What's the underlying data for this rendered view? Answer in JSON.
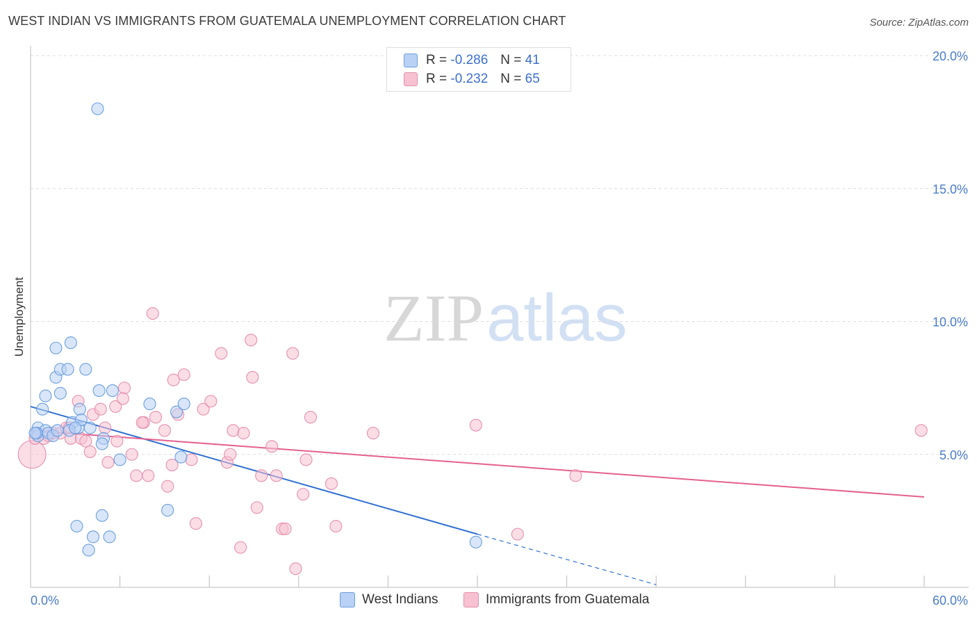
{
  "title": "WEST INDIAN VS IMMIGRANTS FROM GUATEMALA UNEMPLOYMENT CORRELATION CHART",
  "source": "Source: ZipAtlas.com",
  "watermark": {
    "zip": "ZIP",
    "atlas": "atlas"
  },
  "legend": {
    "r_label": "R =",
    "n_label": "N =",
    "series": [
      {
        "r": "-0.286",
        "n": "41",
        "fill": "#b9d1f4",
        "stroke": "#6a9ee0"
      },
      {
        "r": "-0.232",
        "n": "65",
        "fill": "#f7c1d2",
        "stroke": "#e58fad"
      }
    ]
  },
  "chart_data": {
    "type": "scatter",
    "title": "WEST INDIAN VS IMMIGRANTS FROM GUATEMALA UNEMPLOYMENT CORRELATION CHART",
    "xlabel": "",
    "ylabel": "Unemployment",
    "xlim": [
      0,
      60
    ],
    "ylim": [
      0,
      20
    ],
    "x_tick_labels": [
      "0.0%",
      "60.0%"
    ],
    "y_ticks": [
      5,
      10,
      15,
      20
    ],
    "y_tick_labels": [
      "5.0%",
      "10.0%",
      "15.0%",
      "20.0%"
    ],
    "grid": "horizontal dashed",
    "legend_placement": "top-center",
    "series": [
      {
        "name": "West Indians",
        "color": "#6a9ee0",
        "fill": "#b9d1f4",
        "trend": {
          "x": [
            0,
            30
          ],
          "y": [
            6.8,
            2.0
          ],
          "dashed_extension_to": [
            42,
            0.1
          ],
          "color": "#2f6fd1"
        },
        "points": [
          [
            4.5,
            18.0
          ],
          [
            0.5,
            6.0
          ],
          [
            0.5,
            5.7
          ],
          [
            1.0,
            5.9
          ],
          [
            1.2,
            5.8
          ],
          [
            1.5,
            5.7
          ],
          [
            0.8,
            6.7
          ],
          [
            1.0,
            7.2
          ],
          [
            1.8,
            5.9
          ],
          [
            1.7,
            7.9
          ],
          [
            2.0,
            7.3
          ],
          [
            1.7,
            9.0
          ],
          [
            2.7,
            9.2
          ],
          [
            2.0,
            8.2
          ],
          [
            2.5,
            8.2
          ],
          [
            3.7,
            8.2
          ],
          [
            3.2,
            6.0
          ],
          [
            2.8,
            6.2
          ],
          [
            3.3,
            6.7
          ],
          [
            3.4,
            6.3
          ],
          [
            4.0,
            6.0
          ],
          [
            4.6,
            7.4
          ],
          [
            5.5,
            7.4
          ],
          [
            4.9,
            5.6
          ],
          [
            4.8,
            5.4
          ],
          [
            6.0,
            4.8
          ],
          [
            8.0,
            6.9
          ],
          [
            9.8,
            6.6
          ],
          [
            10.3,
            6.9
          ],
          [
            10.1,
            4.9
          ],
          [
            9.2,
            2.9
          ],
          [
            3.1,
            2.3
          ],
          [
            4.8,
            2.7
          ],
          [
            4.2,
            1.9
          ],
          [
            5.3,
            1.9
          ],
          [
            3.9,
            1.4
          ],
          [
            29.9,
            1.7
          ],
          [
            0.4,
            5.8
          ],
          [
            2.6,
            5.9
          ],
          [
            0.3,
            5.8
          ],
          [
            3.0,
            6.0
          ]
        ]
      },
      {
        "name": "Immigrants from Guatemala",
        "color": "#e58fad",
        "fill": "#f7c1d2",
        "trend": {
          "x": [
            0,
            60
          ],
          "y": [
            5.9,
            3.4
          ],
          "color": "#e4608e"
        },
        "points": [
          [
            0.1,
            5.0
          ],
          [
            0.3,
            5.6
          ],
          [
            0.5,
            5.8
          ],
          [
            0.9,
            5.6
          ],
          [
            1.2,
            5.7
          ],
          [
            1.5,
            5.8
          ],
          [
            2.0,
            5.8
          ],
          [
            2.4,
            6.0
          ],
          [
            2.6,
            6.0
          ],
          [
            2.7,
            5.6
          ],
          [
            3.4,
            5.6
          ],
          [
            3.7,
            5.5
          ],
          [
            4.0,
            5.1
          ],
          [
            4.2,
            6.5
          ],
          [
            3.2,
            7.0
          ],
          [
            4.7,
            6.7
          ],
          [
            5.0,
            6.0
          ],
          [
            5.2,
            4.7
          ],
          [
            5.8,
            5.5
          ],
          [
            5.7,
            6.8
          ],
          [
            6.3,
            7.5
          ],
          [
            6.2,
            7.1
          ],
          [
            6.8,
            5.0
          ],
          [
            7.1,
            4.2
          ],
          [
            7.6,
            6.2
          ],
          [
            7.5,
            6.2
          ],
          [
            7.9,
            4.2
          ],
          [
            8.4,
            6.4
          ],
          [
            8.2,
            10.3
          ],
          [
            9.2,
            3.8
          ],
          [
            9.0,
            5.9
          ],
          [
            9.5,
            4.6
          ],
          [
            9.6,
            7.8
          ],
          [
            9.9,
            6.5
          ],
          [
            10.3,
            8.0
          ],
          [
            10.8,
            4.8
          ],
          [
            11.1,
            2.4
          ],
          [
            11.6,
            6.7
          ],
          [
            12.1,
            7.0
          ],
          [
            12.8,
            8.8
          ],
          [
            13.2,
            4.7
          ],
          [
            13.4,
            5.0
          ],
          [
            13.6,
            5.9
          ],
          [
            14.1,
            1.5
          ],
          [
            14.3,
            5.8
          ],
          [
            14.8,
            9.3
          ],
          [
            14.9,
            7.9
          ],
          [
            15.2,
            3.0
          ],
          [
            15.5,
            4.2
          ],
          [
            16.2,
            5.3
          ],
          [
            16.5,
            4.2
          ],
          [
            16.9,
            2.2
          ],
          [
            17.1,
            2.2
          ],
          [
            17.6,
            8.8
          ],
          [
            17.8,
            0.7
          ],
          [
            18.3,
            3.5
          ],
          [
            18.5,
            4.8
          ],
          [
            18.8,
            6.4
          ],
          [
            20.2,
            3.9
          ],
          [
            20.5,
            2.3
          ],
          [
            23.0,
            5.8
          ],
          [
            29.9,
            6.1
          ],
          [
            32.7,
            2.0
          ],
          [
            36.6,
            4.2
          ],
          [
            59.8,
            5.9
          ]
        ]
      }
    ]
  }
}
